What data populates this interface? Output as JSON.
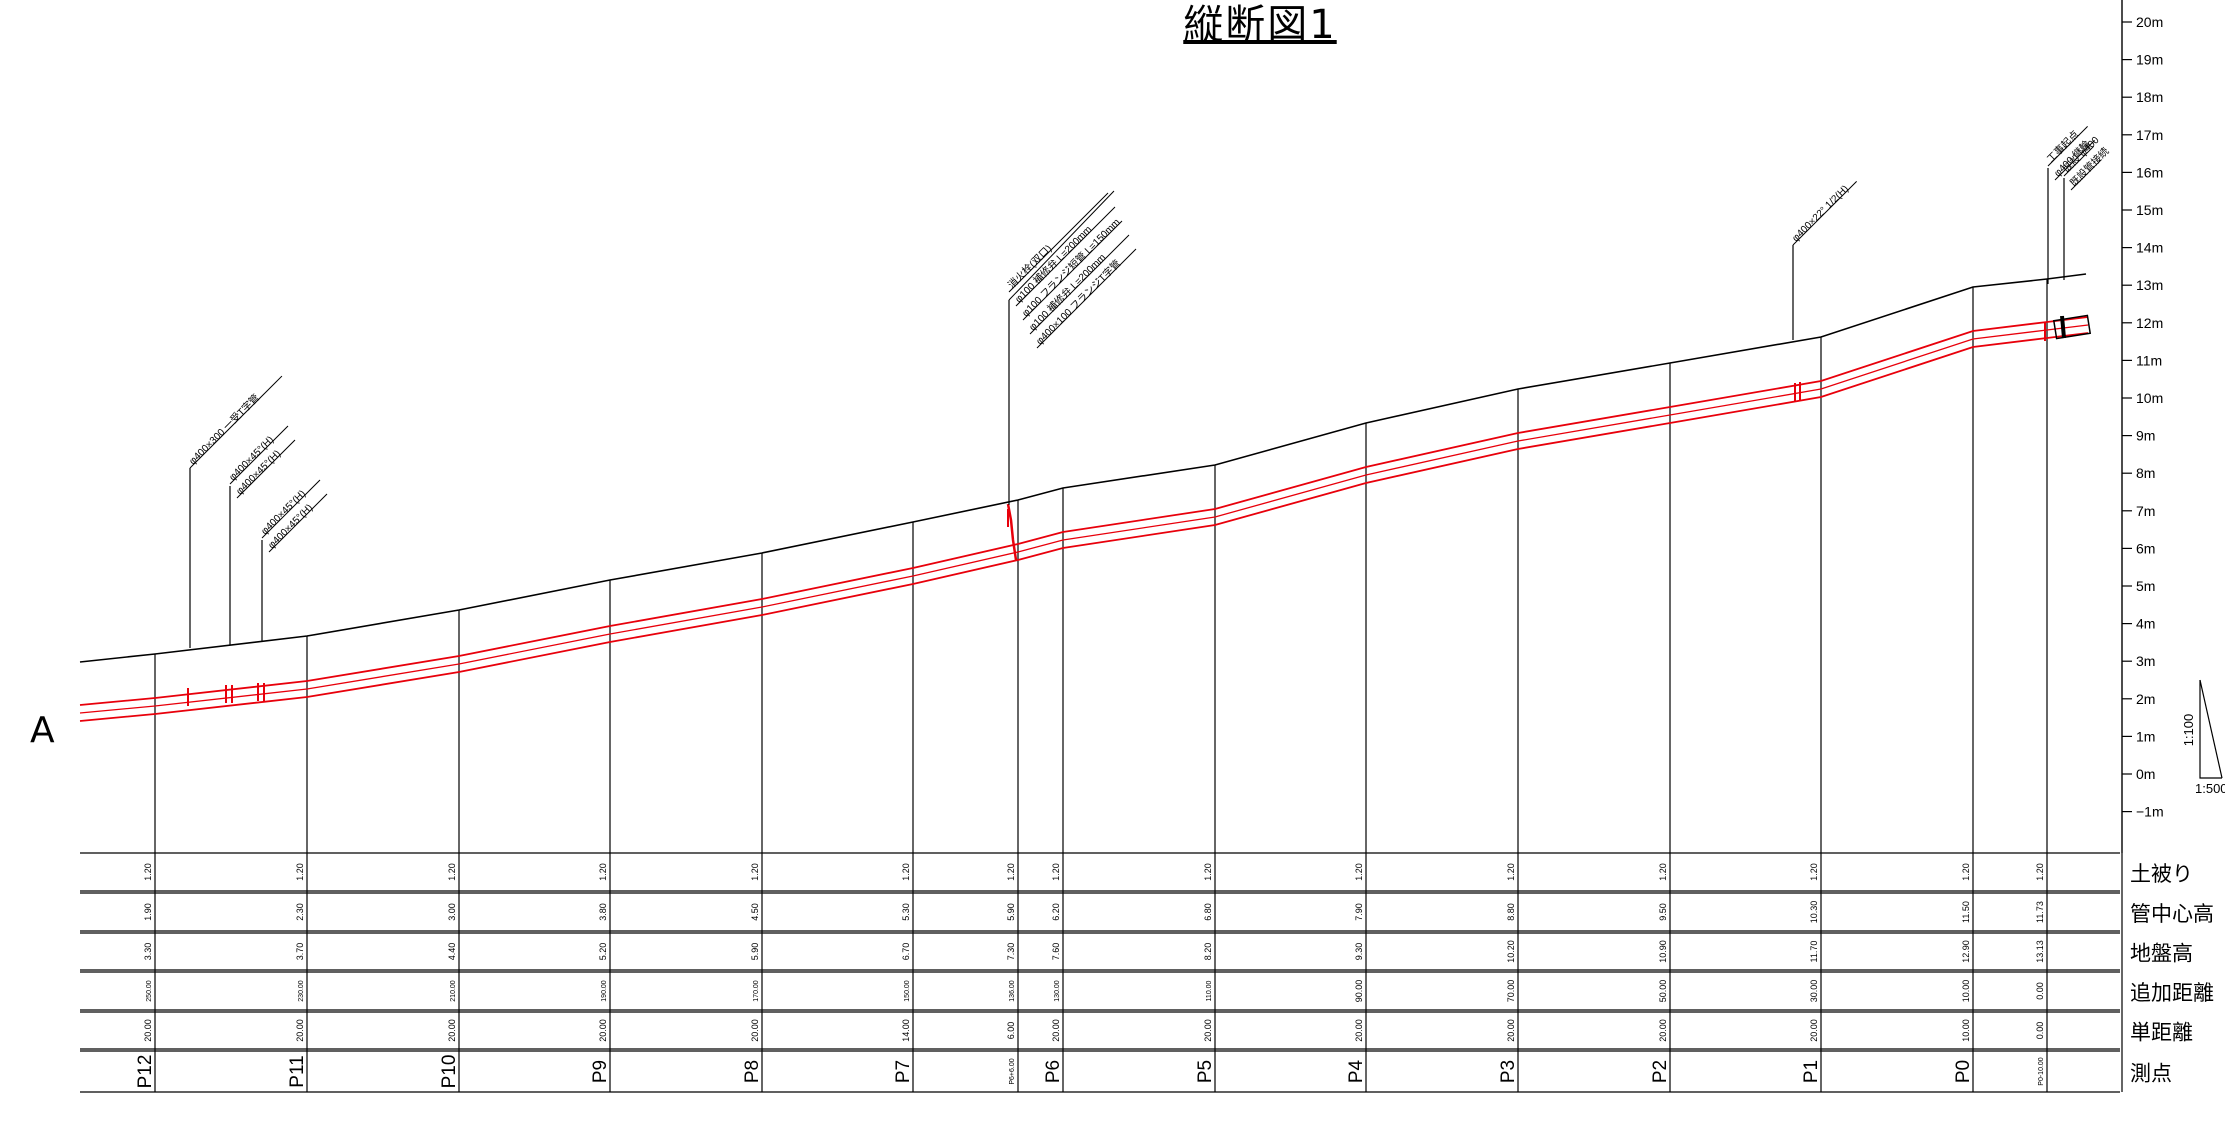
{
  "title": "縦断図1",
  "section_label": "A",
  "scale": {
    "vertical": "1:100",
    "horizontal": "1:500"
  },
  "elevation_ticks": [
    "20m",
    "19m",
    "18m",
    "17m",
    "16m",
    "15m",
    "14m",
    "13m",
    "12m",
    "11m",
    "10m",
    "9m",
    "8m",
    "7m",
    "6m",
    "5m",
    "4m",
    "3m",
    "2m",
    "1m",
    "0m",
    "−1m"
  ],
  "row_labels": [
    "土被り",
    "管中心高",
    "地盤高",
    "追加距離",
    "単距離",
    "測点"
  ],
  "stations": [
    {
      "name": "P12",
      "cover": "1.20",
      "pipe": "1.90",
      "ground": "3.30",
      "cumulative": "250.00",
      "single": "20.00"
    },
    {
      "name": "P11",
      "cover": "1.20",
      "pipe": "2.30",
      "ground": "3.70",
      "cumulative": "230.00",
      "single": "20.00"
    },
    {
      "name": "P10",
      "cover": "1.20",
      "pipe": "3.00",
      "ground": "4.40",
      "cumulative": "210.00",
      "single": "20.00"
    },
    {
      "name": "P9",
      "cover": "1.20",
      "pipe": "3.80",
      "ground": "5.20",
      "cumulative": "190.00",
      "single": "20.00"
    },
    {
      "name": "P8",
      "cover": "1.20",
      "pipe": "4.50",
      "ground": "5.90",
      "cumulative": "170.00",
      "single": "20.00"
    },
    {
      "name": "P7",
      "cover": "1.20",
      "pipe": "5.30",
      "ground": "6.70",
      "cumulative": "150.00",
      "single": "14.00"
    },
    {
      "name": "P6+6.00",
      "cover": "1.20",
      "pipe": "5.90",
      "ground": "7.30",
      "cumulative": "136.00",
      "single": "6.00"
    },
    {
      "name": "P6",
      "cover": "1.20",
      "pipe": "6.20",
      "ground": "7.60",
      "cumulative": "130.00",
      "single": "20.00"
    },
    {
      "name": "P5",
      "cover": "1.20",
      "pipe": "6.80",
      "ground": "8.20",
      "cumulative": "110.00",
      "single": "20.00"
    },
    {
      "name": "P4",
      "cover": "1.20",
      "pipe": "7.90",
      "ground": "9.30",
      "cumulative": "90.00",
      "single": "20.00"
    },
    {
      "name": "P3",
      "cover": "1.20",
      "pipe": "8.80",
      "ground": "10.20",
      "cumulative": "70.00",
      "single": "20.00"
    },
    {
      "name": "P2",
      "cover": "1.20",
      "pipe": "9.50",
      "ground": "10.90",
      "cumulative": "50.00",
      "single": "20.00"
    },
    {
      "name": "P1",
      "cover": "1.20",
      "pipe": "10.30",
      "ground": "11.70",
      "cumulative": "30.00",
      "single": "20.00"
    },
    {
      "name": "P0",
      "cover": "1.20",
      "pipe": "11.50",
      "ground": "12.90",
      "cumulative": "10.00",
      "single": "10.00"
    },
    {
      "name": "P0-10.00",
      "cover": "1.20",
      "pipe": "11.73",
      "ground": "13.13",
      "cumulative": "0.00",
      "single": "0.00"
    }
  ],
  "callouts": [
    {
      "lines": [
        "φ400×300 一受T字管"
      ]
    },
    {
      "lines": [
        "φ400×45°(H)",
        "φ400×45°(H)"
      ]
    },
    {
      "lines": [
        "φ400×45°(H)",
        "φ400×45°(H)"
      ]
    },
    {
      "lines": [
        "消火栓(双口)",
        "φ100 補修弁 L=200mm",
        "φ100 フランジ短管 L=150mm",
        "φ100 補修弁 L=200mm",
        "φ400×100 フランジT字管"
      ]
    },
    {
      "lines": [
        "φ400×22° 1/2(H)"
      ]
    },
    {
      "lines": [
        "工事起点",
        "φ400 継輪"
      ]
    },
    {
      "lines": [
        "既設 φ400",
        "既設管接続"
      ]
    }
  ],
  "colors": {
    "pipe": "#e8000b",
    "line": "#000000"
  }
}
